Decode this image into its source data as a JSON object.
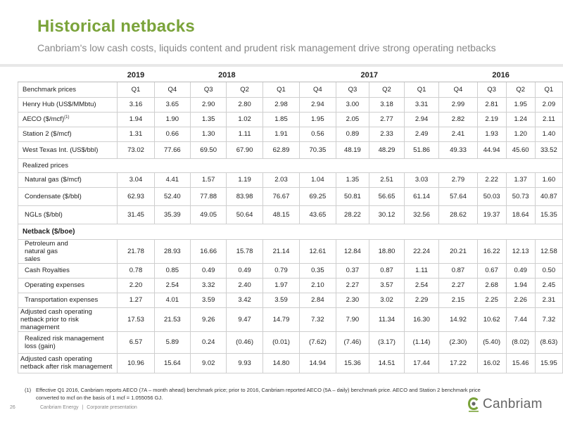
{
  "slide": {
    "title": "Historical netbacks",
    "subtitle": "Canbriam's low cash costs, liquids content and prudent risk management drive strong operating netbacks"
  },
  "table": {
    "years": [
      "2019",
      "2018",
      "2017",
      "2016"
    ],
    "benchmark_header": "Benchmark prices",
    "quarters": [
      "Q1",
      "Q4",
      "Q3",
      "Q2",
      "Q1",
      "Q4",
      "Q3",
      "Q2",
      "Q1",
      "Q4",
      "Q3",
      "Q2",
      "Q1"
    ],
    "benchmark_rows": [
      {
        "label": "Henry Hub (US$/MMbtu)",
        "values": [
          "3.16",
          "3.65",
          "2.90",
          "2.80",
          "2.98",
          "2.94",
          "3.00",
          "3.18",
          "3.31",
          "2.99",
          "2.81",
          "1.95",
          "2.09"
        ]
      },
      {
        "label": "AECO ($/mcf)",
        "sup": "(1)",
        "values": [
          "1.94",
          "1.90",
          "1.35",
          "1.02",
          "1.85",
          "1.95",
          "2.05",
          "2.77",
          "2.94",
          "2.82",
          "2.19",
          "1.24",
          "2.11"
        ]
      },
      {
        "label": "Station 2 ($/mcf)",
        "values": [
          "1.31",
          "0.66",
          "1.30",
          "1.11",
          "1.91",
          "0.56",
          "0.89",
          "2.33",
          "2.49",
          "2.41",
          "1.93",
          "1.20",
          "1.40"
        ]
      },
      {
        "label": "West Texas Int. (US$/bbl)",
        "values": [
          "73.02",
          "77.66",
          "69.50",
          "67.90",
          "62.89",
          "70.35",
          "48.19",
          "48.29",
          "51.86",
          "49.33",
          "44.94",
          "45.60",
          "33.52"
        ]
      }
    ],
    "realized_header": "Realized prices",
    "realized_rows": [
      {
        "label": "Natural gas ($/mcf)",
        "values": [
          "3.04",
          "4.41",
          "1.57",
          "1.19",
          "2.03",
          "1.04",
          "1.35",
          "2.51",
          "3.03",
          "2.79",
          "2.22",
          "1.37",
          "1.60"
        ]
      },
      {
        "label": "Condensate ($/bbl)",
        "values": [
          "62.93",
          "52.40",
          "77.88",
          "83.98",
          "76.67",
          "69.25",
          "50.81",
          "56.65",
          "61.14",
          "57.64",
          "50.03",
          "50.73",
          "40.87"
        ]
      },
      {
        "label": "NGLs ($/bbl)",
        "values": [
          "31.45",
          "35.39",
          "49.05",
          "50.64",
          "48.15",
          "43.65",
          "28.22",
          "30.12",
          "32.56",
          "28.62",
          "19.37",
          "18.64",
          "15.35"
        ]
      }
    ],
    "netback_header": "Netback ($/boe)",
    "netback_rows": [
      {
        "label": "Petroleum and natural gas sales",
        "values": [
          "21.78",
          "28.93",
          "16.66",
          "15.78",
          "21.14",
          "12.61",
          "12.84",
          "18.80",
          "22.24",
          "20.21",
          "16.22",
          "12.13",
          "12.58"
        ]
      },
      {
        "label": "Cash Royalties",
        "values": [
          "0.78",
          "0.85",
          "0.49",
          "0.49",
          "0.79",
          "0.35",
          "0.37",
          "0.87",
          "1.11",
          "0.87",
          "0.67",
          "0.49",
          "0.50"
        ]
      },
      {
        "label": "Operating expenses",
        "values": [
          "2.20",
          "2.54",
          "3.32",
          "2.40",
          "1.97",
          "2.10",
          "2.27",
          "3.57",
          "2.54",
          "2.27",
          "2.68",
          "1.94",
          "2.45"
        ]
      },
      {
        "label": "Transportation expenses",
        "values": [
          "1.27",
          "4.01",
          "3.59",
          "3.42",
          "3.59",
          "2.84",
          "2.30",
          "3.02",
          "2.29",
          "2.15",
          "2.25",
          "2.26",
          "2.31"
        ]
      },
      {
        "label": "Adjusted cash operating netback prior to risk management",
        "values": [
          "17.53",
          "21.53",
          "9.26",
          "9.47",
          "14.79",
          "7.32",
          "7.90",
          "11.34",
          "16.30",
          "14.92",
          "10.62",
          "7.44",
          "7.32"
        ]
      },
      {
        "label": "Realized risk management loss (gain)",
        "values": [
          "6.57",
          "5.89",
          "0.24",
          "(0.46)",
          "(0.01)",
          "(7.62)",
          "(7.46)",
          "(3.17)",
          "(1.14)",
          "(2.30)",
          "(5.40)",
          "(8.02)",
          "(8.63)"
        ]
      },
      {
        "label": "Adjusted cash operating netback after risk management",
        "values": [
          "10.96",
          "15.64",
          "9.02",
          "9.93",
          "14.80",
          "14.94",
          "15.36",
          "14.51",
          "17.44",
          "17.22",
          "16.02",
          "15.46",
          "15.95"
        ]
      }
    ]
  },
  "footnote": {
    "number": "(1)",
    "text": "Effective Q1 2016, Canbriam reports AECO (7A – month ahead) benchmark price; prior to 2016, Canbriam reported AECO (5A – daily) benchmark price. AECO and Station 2 benchmark price converted to mcf on the basis of 1 mcf = 1.055056 GJ."
  },
  "footer": {
    "page": "26",
    "company": "Canbriam Energy",
    "separator": "|",
    "doc": "Corporate presentation"
  },
  "logo": {
    "text": "Canbriam",
    "icon": "canbriam-logo-icon",
    "colors": {
      "green": "#7aa33a",
      "grey": "#666666"
    }
  },
  "colors": {
    "accent": "#7aa33a",
    "subtitle": "#888888",
    "grid": "#cfcfcf"
  }
}
